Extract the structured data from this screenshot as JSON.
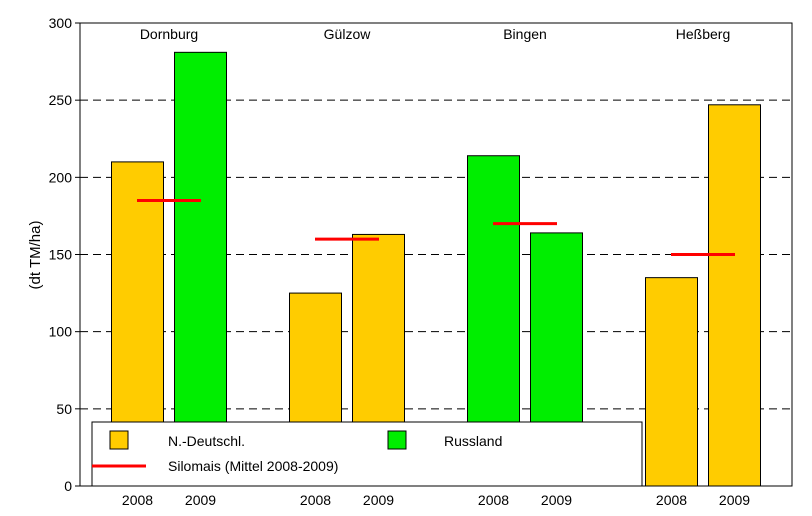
{
  "chart_data": {
    "type": "bar",
    "ylabel": "(dt TM/ha)",
    "ylim": [
      0,
      300
    ],
    "yticks": [
      0,
      50,
      100,
      150,
      200,
      250,
      300
    ],
    "grid": "horizontal dashed",
    "colors": {
      "N.-Deutschl.": "#FFCC00",
      "Russland": "#00EE00",
      "mean": "#FF0000"
    },
    "groups": [
      {
        "site": "Dornburg",
        "bars": [
          {
            "year": "2008",
            "series": "N.-Deutschl.",
            "value": 210
          },
          {
            "year": "2009",
            "series": "Russland",
            "value": 281
          }
        ],
        "silomais_mean": 185
      },
      {
        "site": "Gülzow",
        "bars": [
          {
            "year": "2008",
            "series": "N.-Deutschl.",
            "value": 125
          },
          {
            "year": "2009",
            "series": "N.-Deutschl.",
            "value": 163
          }
        ],
        "silomais_mean": 160
      },
      {
        "site": "Bingen",
        "bars": [
          {
            "year": "2008",
            "series": "Russland",
            "value": 214
          },
          {
            "year": "2009",
            "series": "Russland",
            "value": 164
          }
        ],
        "silomais_mean": 170
      },
      {
        "site": "Heßberg",
        "bars": [
          {
            "year": "2008",
            "series": "N.-Deutschl.",
            "value": 135
          },
          {
            "year": "2009",
            "series": "N.-Deutschl.",
            "value": 247
          }
        ],
        "silomais_mean": 150
      }
    ],
    "legend": {
      "placement": "bottom-left",
      "entries": [
        {
          "label": "N.-Deutschl.",
          "kind": "swatch",
          "color": "#FFCC00"
        },
        {
          "label": "Russland",
          "kind": "swatch",
          "color": "#00EE00"
        },
        {
          "label": "Silomais (Mittel 2008-2009)",
          "kind": "line",
          "color": "#FF0000"
        }
      ]
    }
  }
}
